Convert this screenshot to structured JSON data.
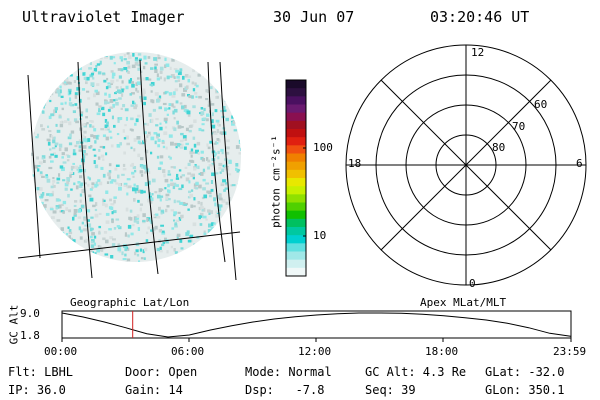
{
  "header": {
    "instrument": "Ultraviolet Imager",
    "date": "30 Jun 07",
    "time": "03:20:46 UT"
  },
  "colorbar": {
    "unit_label": "photon cm⁻²s⁻¹",
    "ticks": [
      "100",
      "10"
    ],
    "colors": [
      "#1a0a2a",
      "#2d1040",
      "#4a1060",
      "#6a1a70",
      "#8a1050",
      "#a01020",
      "#c01010",
      "#e02010",
      "#f05010",
      "#f08000",
      "#f0a000",
      "#f0c000",
      "#e8e800",
      "#c8f000",
      "#90e000",
      "#50d000",
      "#10c000",
      "#00c060",
      "#00c8a0",
      "#00d0d0",
      "#60e0e0",
      "#a0e8e8",
      "#d0f0f0",
      "#f0f8f8"
    ]
  },
  "polar": {
    "labels": [
      "12",
      "18",
      "6",
      "0",
      "60",
      "70",
      "80"
    ]
  },
  "bottom": {
    "left_title": "Geographic Lat/Lon",
    "right_title": "Apex MLat/MLT",
    "y_axis_label": "GC Alt",
    "y_ticks": [
      "9.0",
      "1.8"
    ],
    "x_ticks": [
      "00:00",
      "06:00",
      "12:00",
      "18:00",
      "23:59"
    ]
  },
  "info": {
    "flt": "Flt: LBHL",
    "door": "Door: Open",
    "mode": "Mode: Normal",
    "gc_alt": "GC Alt: 4.3 Re",
    "glat": "GLat: -32.0",
    "ip": "IP: 36.0",
    "gain": "Gain: 14",
    "dsp": "Dsp:   -7.8",
    "seq": "Seq: 39",
    "glon": "GLon: 350.1"
  },
  "chart_data": {
    "type": "line",
    "title": "",
    "xlabel": "",
    "ylabel": "GC Alt",
    "x": [
      "00:00",
      "01:00",
      "02:00",
      "03:00",
      "04:00",
      "05:00",
      "06:00",
      "07:00",
      "08:00",
      "09:00",
      "10:00",
      "11:00",
      "12:00",
      "13:00",
      "14:00",
      "15:00",
      "16:00",
      "17:00",
      "18:00",
      "19:00",
      "20:00",
      "21:00",
      "22:00",
      "23:00",
      "23:59"
    ],
    "series": [
      {
        "values": [
          9.0,
          7.8,
          6.3,
          4.6,
          2.8,
          1.8,
          2.4,
          3.9,
          5.2,
          6.3,
          7.2,
          7.9,
          8.4,
          8.8,
          9.0,
          9.0,
          8.9,
          8.6,
          8.2,
          7.6,
          6.9,
          5.9,
          4.6,
          2.9,
          2.0
        ]
      }
    ],
    "ylim": [
      1.8,
      9.0
    ],
    "current_time_marker": "03:20",
    "grid": false
  }
}
